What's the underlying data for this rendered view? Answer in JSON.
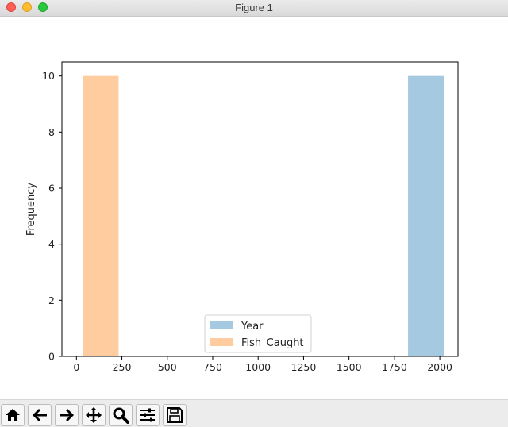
{
  "window": {
    "title": "Figure 1"
  },
  "toolbar": {
    "buttons": [
      {
        "icon": "home-icon"
      },
      {
        "icon": "back-arrow-icon"
      },
      {
        "icon": "forward-arrow-icon"
      },
      {
        "icon": "pan-move-icon"
      },
      {
        "icon": "zoom-magnifier-icon"
      },
      {
        "icon": "configure-subplots-icon"
      },
      {
        "icon": "save-floppy-icon"
      }
    ]
  },
  "chart_data": {
    "type": "bar",
    "title": "",
    "xlabel": "",
    "ylabel": "Frequency",
    "xlim": [
      -80,
      2100
    ],
    "ylim": [
      0,
      10.5
    ],
    "x_ticks": [
      "0",
      "250",
      "500",
      "750",
      "1000",
      "1250",
      "1500",
      "1750",
      "2000"
    ],
    "y_ticks": [
      "0",
      "2",
      "4",
      "6",
      "8",
      "10"
    ],
    "legend_position": "lower-center",
    "series": [
      {
        "name": "Year",
        "color": "#1f77b4",
        "bars": [
          {
            "x0": 1825,
            "x1": 2023,
            "count": 10
          }
        ]
      },
      {
        "name": "Fish_Caught",
        "color": "#ff7f0e",
        "bars": [
          {
            "x0": 35,
            "x1": 232,
            "count": 10
          }
        ]
      }
    ]
  }
}
